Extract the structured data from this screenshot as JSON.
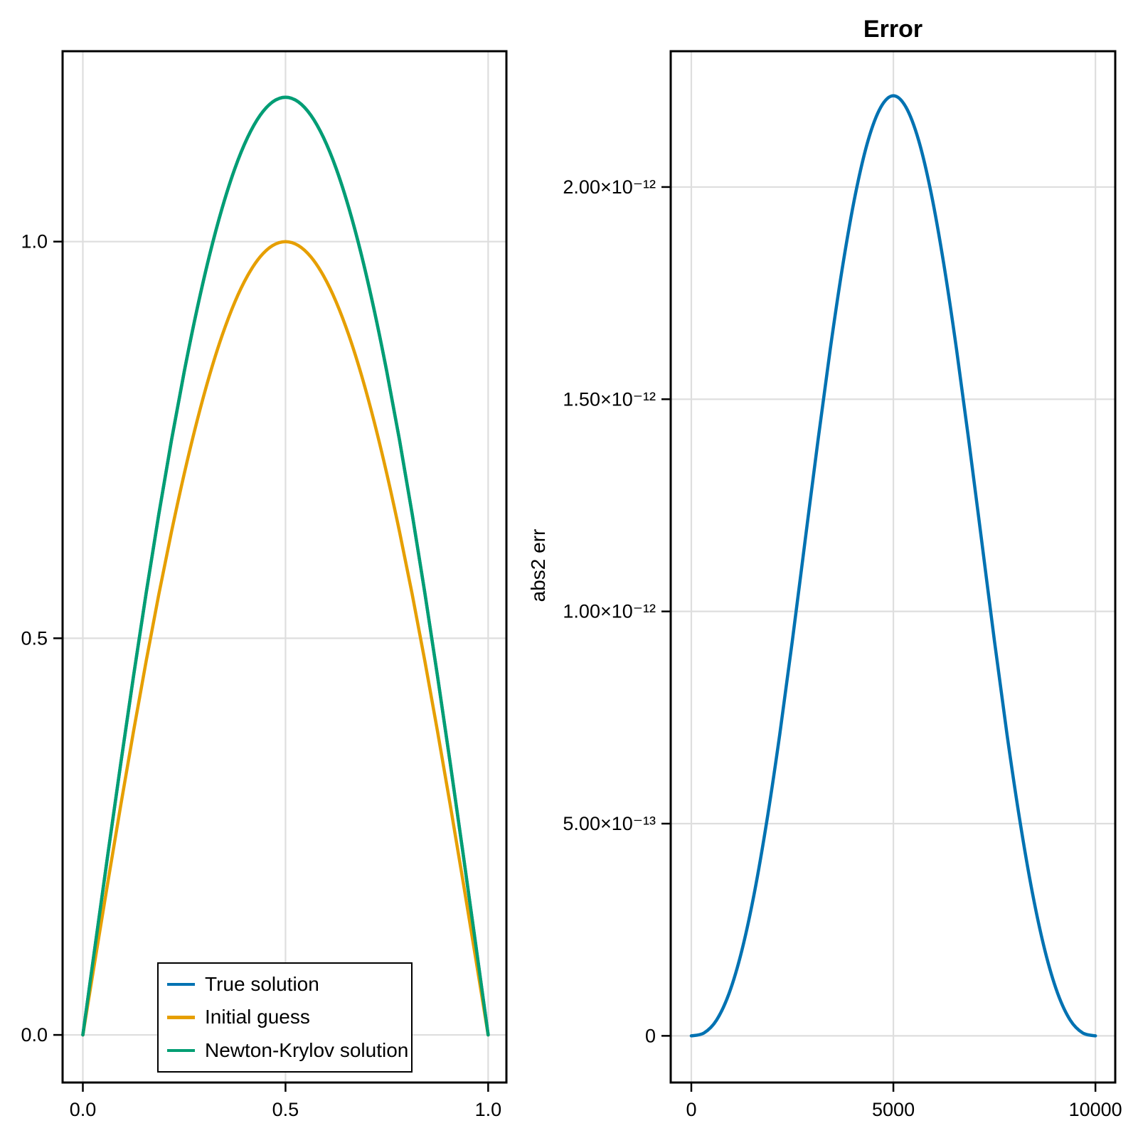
{
  "figure": {
    "background": "#ffffff"
  },
  "legend": {
    "position": "bottom-left-inside",
    "entries": [
      "True solution",
      "Initial guess",
      "Newton-Krylov solution"
    ]
  },
  "chart_data": [
    {
      "type": "line",
      "title": "",
      "xlabel": "",
      "ylabel": "",
      "grid": true,
      "legend_position": "bottom-left-inside",
      "xlim": [
        -0.05,
        1.045
      ],
      "ylim": [
        -0.06,
        1.24
      ],
      "xticks": [
        {
          "v": 0.0,
          "label": "0.0"
        },
        {
          "v": 0.5,
          "label": "0.5"
        },
        {
          "v": 1.0,
          "label": "1.0"
        }
      ],
      "yticks": [
        {
          "v": 0.0,
          "label": "0.0"
        },
        {
          "v": 0.5,
          "label": "0.5"
        },
        {
          "v": 1.0,
          "label": "1.0"
        }
      ],
      "x": [
        0,
        0.03125,
        0.0625,
        0.09375,
        0.125,
        0.15625,
        0.1875,
        0.21875,
        0.25,
        0.28125,
        0.3125,
        0.34375,
        0.375,
        0.40625,
        0.4375,
        0.46875,
        0.5,
        0.53125,
        0.5625,
        0.59375,
        0.625,
        0.65625,
        0.6875,
        0.71875,
        0.75,
        0.78125,
        0.8125,
        0.84375,
        0.875,
        0.90625,
        0.9375,
        0.96875,
        1
      ],
      "series": [
        {
          "name": "True solution",
          "color": "#0072B2",
          "values": [
            0,
            0.1159,
            0.2306,
            0.3431,
            0.4523,
            0.5572,
            0.6567,
            0.7499,
            0.8358,
            0.9137,
            0.9828,
            1.0424,
            1.0921,
            1.1311,
            1.1593,
            1.1763,
            1.182,
            1.1763,
            1.1593,
            1.1311,
            1.0921,
            1.0424,
            0.9828,
            0.9137,
            0.8358,
            0.7499,
            0.6567,
            0.5572,
            0.4523,
            0.3431,
            0.2306,
            0.1159,
            0
          ]
        },
        {
          "name": "Initial guess",
          "color": "#E69F00",
          "values": [
            0,
            0.098,
            0.1951,
            0.2903,
            0.3827,
            0.4714,
            0.5556,
            0.6344,
            0.7071,
            0.773,
            0.8315,
            0.8819,
            0.9239,
            0.9569,
            0.9808,
            0.9952,
            1.0,
            0.9952,
            0.9808,
            0.9569,
            0.9239,
            0.8819,
            0.8315,
            0.773,
            0.7071,
            0.6344,
            0.5556,
            0.4714,
            0.3827,
            0.2903,
            0.1951,
            0.098,
            0
          ]
        },
        {
          "name": "Newton-Krylov solution",
          "color": "#009E73",
          "values": [
            0,
            0.1159,
            0.2306,
            0.3431,
            0.4523,
            0.5572,
            0.6567,
            0.7499,
            0.8358,
            0.9137,
            0.9828,
            1.0424,
            1.0921,
            1.1311,
            1.1593,
            1.1763,
            1.182,
            1.1763,
            1.1593,
            1.1311,
            1.0921,
            1.0424,
            0.9828,
            0.9137,
            0.8358,
            0.7499,
            0.6567,
            0.5572,
            0.4523,
            0.3431,
            0.2306,
            0.1159,
            0
          ]
        }
      ]
    },
    {
      "type": "line",
      "title": "Error",
      "xlabel": "",
      "ylabel": "abs2 err",
      "grid": true,
      "xlim": [
        -510,
        10490
      ],
      "ylim": [
        -1.1e-13,
        2.32e-12
      ],
      "xticks": [
        {
          "v": 0,
          "label": "0"
        },
        {
          "v": 5000,
          "label": "5000"
        },
        {
          "v": 10000,
          "label": "10000"
        }
      ],
      "yticks": [
        {
          "v": 0,
          "label": "0"
        },
        {
          "v": 5e-13,
          "label": "5.00×10⁻¹³"
        },
        {
          "v": 1e-12,
          "label": "1.00×10⁻¹²"
        },
        {
          "v": 1.5e-12,
          "label": "1.50×10⁻¹²"
        },
        {
          "v": 2e-12,
          "label": "2.00×10⁻¹²"
        }
      ],
      "x": [
        0,
        312,
        625,
        938,
        1250,
        1562,
        1875,
        2188,
        2500,
        2812,
        3125,
        3438,
        3750,
        4062,
        4375,
        4688,
        5000,
        5312,
        5625,
        5938,
        6250,
        6562,
        6875,
        7188,
        7500,
        7812,
        8125,
        8438,
        8750,
        9062,
        9375,
        9688,
        10000
      ],
      "series": [
        {
          "name": "abs2 err",
          "color": "#0072B2",
          "values": [
            0,
            6.7e-15,
            3.72e-14,
            1.01e-13,
            2.01e-13,
            3.38e-13,
            5.1e-13,
            7.1e-13,
            9.31e-13,
            1.164e-12,
            1.396e-12,
            1.618e-12,
            1.817e-12,
            1.984e-12,
            2.11e-12,
            2.188e-12,
            2.215e-12,
            2.188e-12,
            2.11e-12,
            1.984e-12,
            1.817e-12,
            1.618e-12,
            1.396e-12,
            1.164e-12,
            9.31e-13,
            7.1e-13,
            5.1e-13,
            3.38e-13,
            2.01e-13,
            1.01e-13,
            3.72e-14,
            6.7e-15,
            0
          ]
        }
      ]
    }
  ]
}
